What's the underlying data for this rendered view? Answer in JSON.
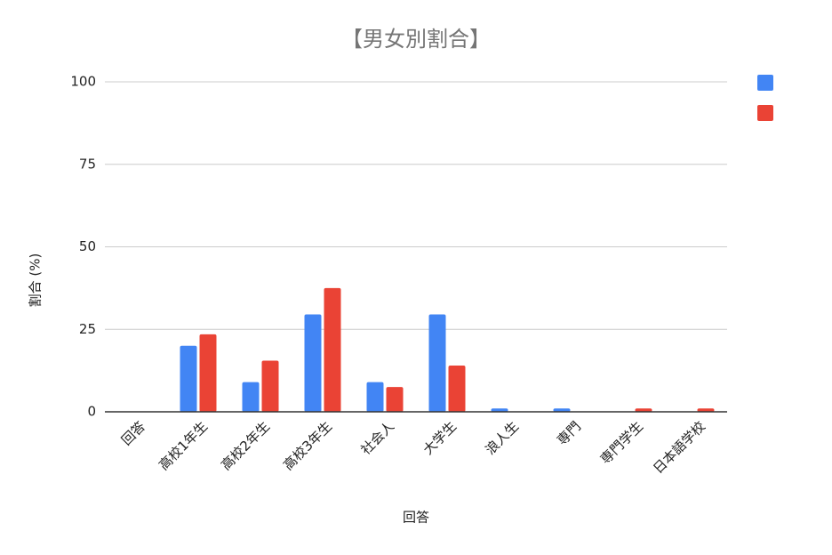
{
  "chart_data": {
    "type": "bar",
    "title": "【男女別割合】",
    "x_label": "回答",
    "y_label": "割合 (%)",
    "categories": [
      "回答",
      "高校1年生",
      "高校2年生",
      "高校3年生",
      "社会人",
      "大学生",
      "浪人生",
      "専門",
      "専門学生",
      "日本語学校"
    ],
    "series": [
      {
        "color": "#4285f4",
        "values": [
          0,
          20,
          9,
          29.5,
          9,
          29.5,
          1,
          1,
          0,
          0
        ]
      },
      {
        "color": "#ea4335",
        "values": [
          0,
          23.5,
          15.5,
          37.5,
          7.5,
          14,
          0,
          0,
          1,
          1
        ]
      }
    ],
    "ylim": [
      0,
      100
    ],
    "yticks": [
      0,
      25,
      50,
      75,
      100
    ],
    "grid": true
  }
}
